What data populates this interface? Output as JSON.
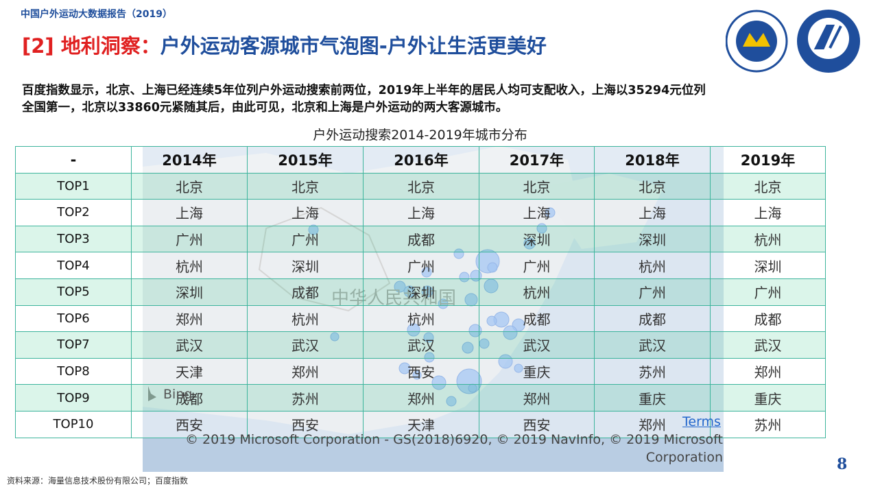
{
  "header": {
    "report_label": "中国户外运动大数据报告（2019）",
    "title_prefix": "[2] 地利洞察：",
    "title_main": "户外运动客源城市气泡图-户外让生活更美好"
  },
  "description": [
    "百度指数显示，北京、上海已经连续5年位列户外运动搜索前两位，2019年上半年的居民人均可支配收入，上海以35294元位列",
    "全国第一，北京以33860元紧随其后，由此可见，北京和上海是户外运动的两大客源城市。"
  ],
  "table": {
    "title": "户外运动搜索2014-2019年城市分布",
    "header": [
      "-",
      "2014年",
      "2015年",
      "2016年",
      "2017年",
      "2018年",
      "2019年"
    ],
    "rows": [
      [
        "TOP1",
        "北京",
        "北京",
        "北京",
        "北京",
        "北京",
        "北京"
      ],
      [
        "TOP2",
        "上海",
        "上海",
        "上海",
        "上海",
        "上海",
        "上海"
      ],
      [
        "TOP3",
        "广州",
        "广州",
        "成都",
        "深圳",
        "深圳",
        "杭州"
      ],
      [
        "TOP4",
        "杭州",
        "深圳",
        "广州",
        "广州",
        "杭州",
        "深圳"
      ],
      [
        "TOP5",
        "深圳",
        "成都",
        "深圳",
        "杭州",
        "广州",
        "广州"
      ],
      [
        "TOP6",
        "郑州",
        "杭州",
        "杭州",
        "成都",
        "成都",
        "成都"
      ],
      [
        "TOP7",
        "武汉",
        "武汉",
        "武汉",
        "武汉",
        "武汉",
        "武汉"
      ],
      [
        "TOP8",
        "天津",
        "郑州",
        "西安",
        "重庆",
        "苏州",
        "郑州"
      ],
      [
        "TOP9",
        "成都",
        "苏州",
        "郑州",
        "郑州",
        "重庆",
        "重庆"
      ],
      [
        "TOP10",
        "西安",
        "西安",
        "天津",
        "西安",
        "郑州",
        "苏州"
      ]
    ]
  },
  "map": {
    "country_label": "中华人民共和国",
    "provider": "Bing",
    "terms": "Terms",
    "copyright": [
      "© 2019 Microsoft Corporation - GS(2018)6920, © 2019 NavInfo, © 2019 Microsoft",
      "Corporation"
    ]
  },
  "footer": {
    "source": "资料来源：海量信息技术股份有限公司；百度指数",
    "page_number": "8"
  }
}
